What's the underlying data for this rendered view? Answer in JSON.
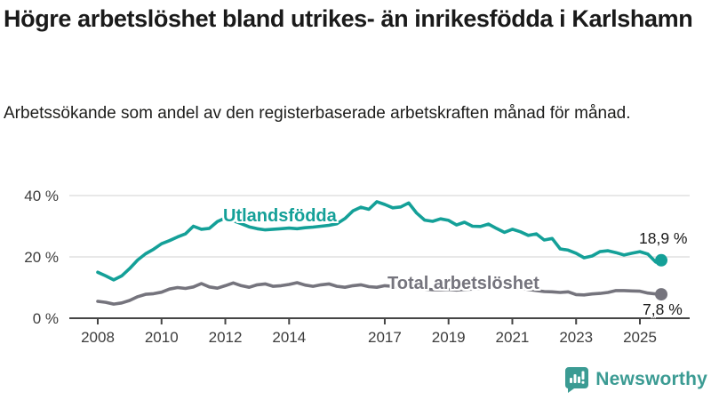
{
  "header": {
    "title": "Högre arbetslöshet bland utrikes- än inrikesfödda i Karlshamn",
    "subtitle": "Arbetssökande som andel av den registerbaserade arbetskraften månad för månad."
  },
  "chart_data": {
    "type": "line",
    "x_unit": "decimal_year",
    "xlim": [
      2007.1,
      2026.5
    ],
    "ylim": [
      0,
      43
    ],
    "grid": "horizontal",
    "yticks": [
      {
        "value": 0,
        "label": "0 %"
      },
      {
        "value": 20,
        "label": "20 %"
      },
      {
        "value": 40,
        "label": "40 %"
      }
    ],
    "xticks": [
      {
        "value": 2008,
        "label": "2008"
      },
      {
        "value": 2010,
        "label": "2010"
      },
      {
        "value": 2012,
        "label": "2012"
      },
      {
        "value": 2014,
        "label": "2014"
      },
      {
        "value": 2017,
        "label": "2017"
      },
      {
        "value": 2019,
        "label": "2019"
      },
      {
        "value": 2021,
        "label": "2021"
      },
      {
        "value": 2023,
        "label": "2023"
      },
      {
        "value": 2025,
        "label": "2025"
      }
    ],
    "x": [
      2008.0,
      2008.25,
      2008.5,
      2008.75,
      2009.0,
      2009.25,
      2009.5,
      2009.75,
      2010.0,
      2010.25,
      2010.5,
      2010.75,
      2011.0,
      2011.25,
      2011.5,
      2011.75,
      2012.0,
      2012.25,
      2012.5,
      2012.75,
      2013.0,
      2013.25,
      2013.5,
      2013.75,
      2014.0,
      2014.25,
      2014.5,
      2014.75,
      2015.0,
      2015.25,
      2015.5,
      2015.75,
      2016.0,
      2016.25,
      2016.5,
      2016.75,
      2017.0,
      2017.25,
      2017.5,
      2017.75,
      2018.0,
      2018.25,
      2018.5,
      2018.75,
      2019.0,
      2019.25,
      2019.5,
      2019.75,
      2020.0,
      2020.25,
      2020.5,
      2020.75,
      2021.0,
      2021.25,
      2021.5,
      2021.75,
      2022.0,
      2022.25,
      2022.5,
      2022.75,
      2023.0,
      2023.25,
      2023.5,
      2023.75,
      2024.0,
      2024.25,
      2024.5,
      2024.75,
      2025.0,
      2025.25,
      2025.5,
      2025.67
    ],
    "series": [
      {
        "name": "Utlandsfödda",
        "color": "#14A098",
        "end_value_label": "18,9 %",
        "values": [
          15.0,
          13.8,
          12.5,
          13.8,
          16.2,
          19.0,
          21.0,
          22.5,
          24.3,
          25.3,
          26.5,
          27.5,
          30.0,
          29.0,
          29.3,
          31.5,
          32.7,
          31.8,
          30.8,
          29.8,
          29.2,
          28.8,
          29.0,
          29.2,
          29.4,
          29.2,
          29.5,
          29.7,
          30.0,
          30.3,
          30.8,
          32.5,
          35.0,
          36.2,
          35.5,
          38.0,
          37.1,
          36.0,
          36.3,
          37.6,
          34.3,
          32.0,
          31.6,
          32.4,
          31.9,
          30.4,
          31.3,
          30.0,
          29.9,
          30.7,
          29.3,
          28.0,
          29.0,
          28.2,
          27.0,
          27.5,
          25.5,
          26.0,
          22.6,
          22.2,
          21.2,
          19.7,
          20.3,
          21.7,
          22.0,
          21.4,
          20.6,
          21.2,
          21.7,
          20.9,
          18.3,
          18.9
        ]
      },
      {
        "name": "Total arbetslöshet",
        "color": "#75747D",
        "end_value_label": "7,8 %",
        "values": [
          5.5,
          5.2,
          4.6,
          5.0,
          5.8,
          7.0,
          7.8,
          8.0,
          8.5,
          9.5,
          10.0,
          9.7,
          10.2,
          11.3,
          10.2,
          9.8,
          10.6,
          11.5,
          10.6,
          10.1,
          10.9,
          11.2,
          10.4,
          10.6,
          11.0,
          11.6,
          10.8,
          10.4,
          10.9,
          11.2,
          10.4,
          10.1,
          10.6,
          10.9,
          10.3,
          10.1,
          10.6,
          10.4,
          10.1,
          9.9,
          9.7,
          9.5,
          9.3,
          9.3,
          9.4,
          9.2,
          9.4,
          9.5,
          9.6,
          10.6,
          10.9,
          10.5,
          10.2,
          9.8,
          9.4,
          9.0,
          8.7,
          8.6,
          8.4,
          8.6,
          7.7,
          7.6,
          7.9,
          8.1,
          8.4,
          9.0,
          9.0,
          8.9,
          8.8,
          8.2,
          7.9,
          7.8
        ]
      }
    ],
    "colors": {
      "grid": "#d9d9d9",
      "axis": "#454545",
      "tick_text": "#3d3d3d"
    }
  },
  "footer": {
    "brand": "Newsworthy",
    "brand_color": "#3B9B93"
  }
}
